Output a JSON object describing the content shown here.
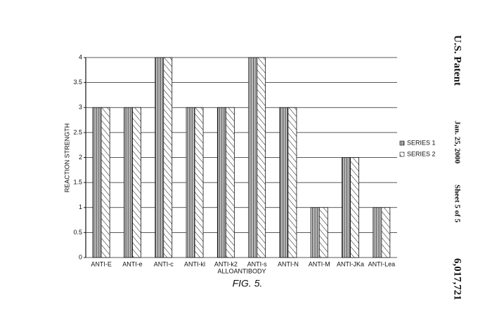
{
  "chart_data": {
    "type": "bar",
    "x_label": "ALLOANTIBODY",
    "y_label": "REACTION STRENGTH",
    "figure_label": "FIG. 5.",
    "categories": [
      "ANTI-E",
      "ANTI-e",
      "ANTI-c",
      "ANTI-kl",
      "ANTI-k2",
      "ANTI-s",
      "ANTI-N",
      "ANTI-M",
      "ANTI-JKa",
      "ANTI-Lea"
    ],
    "series": [
      {
        "name": "SERIES 1",
        "color": "#111111",
        "hatch": "vertical",
        "values": [
          3,
          3,
          4,
          3,
          3,
          4,
          3,
          1,
          2,
          1
        ]
      },
      {
        "name": "SERIES 2",
        "color": "#111111",
        "hatch": "diagonal",
        "values": [
          3,
          3,
          4,
          3,
          3,
          4,
          3,
          1,
          2,
          1
        ]
      }
    ],
    "ylim": [
      0,
      4
    ],
    "yticks": [
      0,
      0.5,
      1,
      1.5,
      2,
      2.5,
      3,
      3.5,
      4
    ],
    "grid": true,
    "legend": "right"
  },
  "patent": {
    "name": "U.S. Patent",
    "date": "Jan. 25, 2000",
    "sheet": "Sheet 5 of 5",
    "number": "6,017,721"
  }
}
